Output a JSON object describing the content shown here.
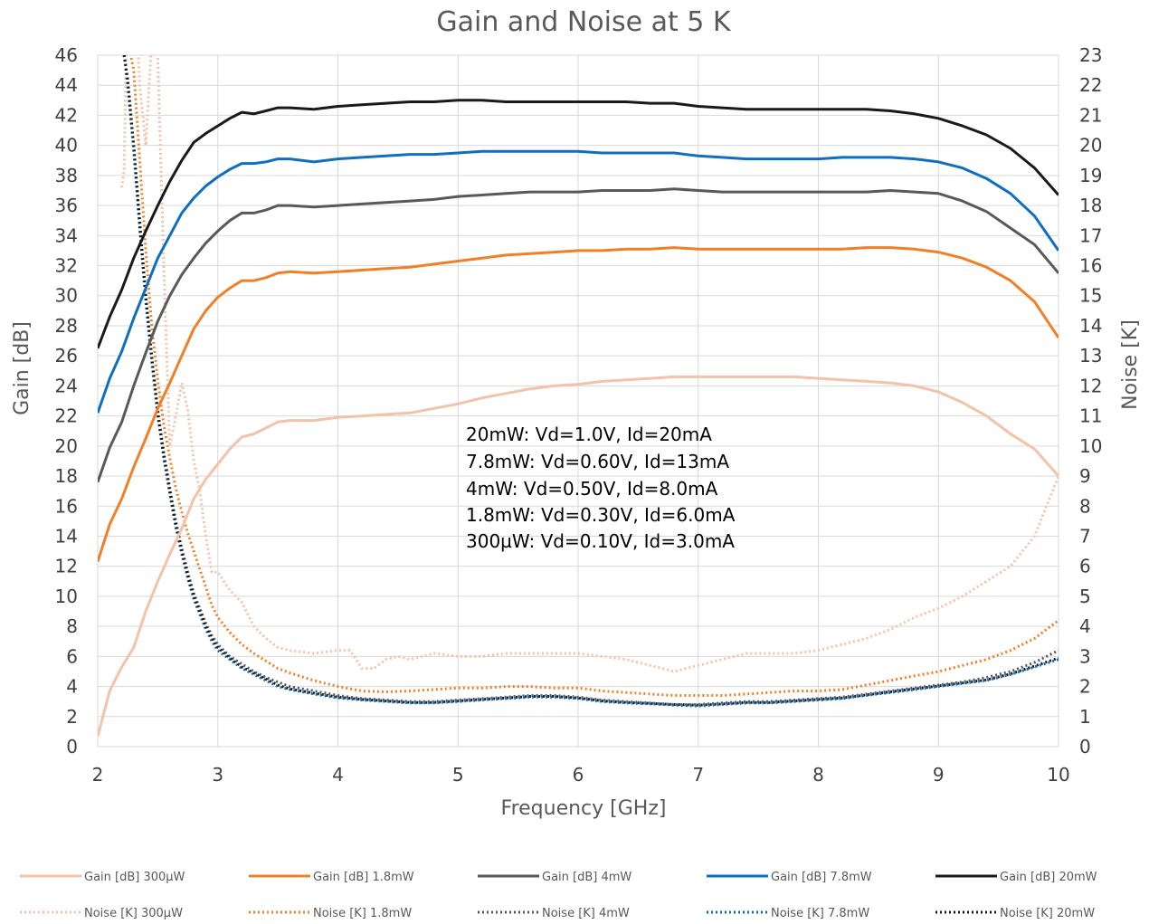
{
  "chart_data": {
    "type": "line",
    "title": "Gain and Noise at 5 K",
    "xlabel": "Frequency [GHz]",
    "ylabel": "Gain [dB]",
    "y2label": "Noise [K]",
    "xlim": [
      2,
      10
    ],
    "ylim": [
      0,
      46
    ],
    "y2lim": [
      0,
      23
    ],
    "x_ticks": [
      "2",
      "3",
      "4",
      "5",
      "6",
      "7",
      "8",
      "9",
      "10"
    ],
    "y_ticks": [
      "0",
      "2",
      "4",
      "6",
      "8",
      "10",
      "12",
      "14",
      "16",
      "18",
      "20",
      "22",
      "24",
      "26",
      "28",
      "30",
      "32",
      "34",
      "36",
      "38",
      "40",
      "42",
      "44",
      "46"
    ],
    "y2_ticks": [
      "0",
      "1",
      "2",
      "3",
      "4",
      "5",
      "6",
      "7",
      "8",
      "9",
      "10",
      "11",
      "12",
      "13",
      "14",
      "15",
      "16",
      "17",
      "18",
      "19",
      "20",
      "21",
      "22",
      "23"
    ],
    "grid": true,
    "legend_position": "bottom",
    "annotations": [
      "20mW: Vd=1.0V, Id=20mA",
      "7.8mW: Vd=0.60V, Id=13mA",
      "4mW: Vd=0.50V, Id=8.0mA",
      "1.8mW: Vd=0.30V, Id=6.0mA",
      "300µW: Vd=0.10V, Id=3.0mA"
    ],
    "series": [
      {
        "name": "Gain [dB] 300µW",
        "axis": "left",
        "style": "solid",
        "color": "#f4c2a8",
        "x": [
          2,
          2.1,
          2.2,
          2.3,
          2.4,
          2.5,
          2.6,
          2.7,
          2.8,
          2.9,
          3,
          3.1,
          3.2,
          3.3,
          3.4,
          3.5,
          3.6,
          3.8,
          4,
          4.2,
          4.4,
          4.6,
          4.8,
          5,
          5.2,
          5.4,
          5.6,
          5.8,
          6,
          6.2,
          6.4,
          6.6,
          6.8,
          7,
          7.2,
          7.4,
          7.6,
          7.8,
          8,
          8.2,
          8.4,
          8.6,
          8.8,
          9,
          9.2,
          9.4,
          9.6,
          9.8,
          10
        ],
        "y": [
          0.7,
          3.7,
          5.3,
          6.6,
          9,
          11,
          12.8,
          14.5,
          16.5,
          17.8,
          18.8,
          19.8,
          20.6,
          20.8,
          21.2,
          21.6,
          21.7,
          21.7,
          21.9,
          22,
          22.1,
          22.2,
          22.5,
          22.8,
          23.2,
          23.5,
          23.8,
          24,
          24.1,
          24.3,
          24.4,
          24.5,
          24.6,
          24.6,
          24.6,
          24.6,
          24.6,
          24.6,
          24.5,
          24.4,
          24.3,
          24.2,
          24,
          23.6,
          22.9,
          22,
          20.8,
          19.8,
          18
        ]
      },
      {
        "name": "Gain [dB] 1.8mW",
        "axis": "left",
        "style": "solid",
        "color": "#f07f25",
        "x": [
          2,
          2.1,
          2.2,
          2.3,
          2.4,
          2.5,
          2.6,
          2.7,
          2.8,
          2.9,
          3,
          3.1,
          3.2,
          3.3,
          3.4,
          3.5,
          3.6,
          3.8,
          4,
          4.2,
          4.4,
          4.6,
          4.8,
          5,
          5.2,
          5.4,
          5.6,
          5.8,
          6,
          6.2,
          6.4,
          6.6,
          6.8,
          7,
          7.2,
          7.4,
          7.6,
          7.8,
          8,
          8.2,
          8.4,
          8.6,
          8.8,
          9,
          9.2,
          9.4,
          9.6,
          9.8,
          10
        ],
        "y": [
          12.3,
          14.8,
          16.5,
          18.6,
          20.5,
          22.5,
          24.2,
          26,
          27.8,
          29,
          29.9,
          30.5,
          31,
          31,
          31.2,
          31.5,
          31.6,
          31.5,
          31.6,
          31.7,
          31.8,
          31.9,
          32.1,
          32.3,
          32.5,
          32.7,
          32.8,
          32.9,
          33,
          33,
          33.1,
          33.1,
          33.2,
          33.1,
          33.1,
          33.1,
          33.1,
          33.1,
          33.1,
          33.1,
          33.2,
          33.2,
          33.1,
          32.9,
          32.5,
          31.9,
          31,
          29.6,
          27.2
        ]
      },
      {
        "name": "Gain [dB] 4mW",
        "axis": "left",
        "style": "solid",
        "color": "#595959",
        "x": [
          2,
          2.1,
          2.2,
          2.3,
          2.4,
          2.5,
          2.6,
          2.7,
          2.8,
          2.9,
          3,
          3.1,
          3.2,
          3.3,
          3.4,
          3.5,
          3.6,
          3.8,
          4,
          4.2,
          4.4,
          4.6,
          4.8,
          5,
          5.2,
          5.4,
          5.6,
          5.8,
          6,
          6.2,
          6.4,
          6.6,
          6.8,
          7,
          7.2,
          7.4,
          7.6,
          7.8,
          8,
          8.2,
          8.4,
          8.6,
          8.8,
          9,
          9.2,
          9.4,
          9.6,
          9.8,
          10
        ],
        "y": [
          17.6,
          19.9,
          21.6,
          24,
          26.2,
          28.3,
          30,
          31.4,
          32.5,
          33.5,
          34.3,
          35,
          35.5,
          35.5,
          35.7,
          36,
          36,
          35.9,
          36,
          36.1,
          36.2,
          36.3,
          36.4,
          36.6,
          36.7,
          36.8,
          36.9,
          36.9,
          36.9,
          37,
          37,
          37,
          37.1,
          37,
          36.9,
          36.9,
          36.9,
          36.9,
          36.9,
          36.9,
          36.9,
          37,
          36.9,
          36.8,
          36.3,
          35.6,
          34.5,
          33.4,
          31.5
        ]
      },
      {
        "name": "Gain [dB] 7.8mW",
        "axis": "left",
        "style": "solid",
        "color": "#0f6fbf",
        "x": [
          2,
          2.1,
          2.2,
          2.3,
          2.4,
          2.5,
          2.6,
          2.7,
          2.8,
          2.9,
          3,
          3.1,
          3.2,
          3.3,
          3.4,
          3.5,
          3.6,
          3.8,
          4,
          4.2,
          4.4,
          4.6,
          4.8,
          5,
          5.2,
          5.4,
          5.6,
          5.8,
          6,
          6.2,
          6.4,
          6.6,
          6.8,
          7,
          7.2,
          7.4,
          7.6,
          7.8,
          8,
          8.2,
          8.4,
          8.6,
          8.8,
          9,
          9.2,
          9.4,
          9.6,
          9.8,
          10
        ],
        "y": [
          22.2,
          24.5,
          26.3,
          28.5,
          30.5,
          32.5,
          34,
          35.5,
          36.5,
          37.3,
          37.9,
          38.4,
          38.8,
          38.8,
          38.9,
          39.1,
          39.1,
          38.9,
          39.1,
          39.2,
          39.3,
          39.4,
          39.4,
          39.5,
          39.6,
          39.6,
          39.6,
          39.6,
          39.6,
          39.5,
          39.5,
          39.5,
          39.5,
          39.3,
          39.2,
          39.1,
          39.1,
          39.1,
          39.1,
          39.2,
          39.2,
          39.2,
          39.1,
          38.9,
          38.5,
          37.8,
          36.8,
          35.3,
          33
        ]
      },
      {
        "name": "Gain [dB] 20mW",
        "axis": "left",
        "style": "solid",
        "color": "#1a1a1a",
        "x": [
          2,
          2.1,
          2.2,
          2.3,
          2.4,
          2.5,
          2.6,
          2.7,
          2.8,
          2.9,
          3,
          3.1,
          3.2,
          3.3,
          3.4,
          3.5,
          3.6,
          3.8,
          4,
          4.2,
          4.4,
          4.6,
          4.8,
          5,
          5.2,
          5.4,
          5.6,
          5.8,
          6,
          6.2,
          6.4,
          6.6,
          6.8,
          7,
          7.2,
          7.4,
          7.6,
          7.8,
          8,
          8.2,
          8.4,
          8.6,
          8.8,
          9,
          9.2,
          9.4,
          9.6,
          9.8,
          10
        ],
        "y": [
          26.5,
          28.6,
          30.4,
          32.5,
          34.3,
          36,
          37.6,
          39,
          40.2,
          40.8,
          41.3,
          41.8,
          42.2,
          42.1,
          42.3,
          42.5,
          42.5,
          42.4,
          42.6,
          42.7,
          42.8,
          42.9,
          42.9,
          43,
          43,
          42.9,
          42.9,
          42.9,
          42.9,
          42.9,
          42.9,
          42.8,
          42.8,
          42.6,
          42.5,
          42.4,
          42.4,
          42.4,
          42.4,
          42.4,
          42.4,
          42.3,
          42.1,
          41.8,
          41.3,
          40.7,
          39.8,
          38.5,
          36.7
        ]
      },
      {
        "name": "Noise [K] 300µW",
        "axis": "right",
        "style": "dotted",
        "color": "#f4c2a8",
        "x": [
          2.2,
          2.22,
          2.25,
          2.3,
          2.35,
          2.4,
          2.45,
          2.5,
          2.55,
          2.6,
          2.65,
          2.7,
          2.75,
          2.8,
          2.85,
          2.9,
          2.95,
          3,
          3.1,
          3.2,
          3.3,
          3.4,
          3.5,
          3.6,
          3.8,
          4,
          4.1,
          4.2,
          4.3,
          4.4,
          4.5,
          4.6,
          4.8,
          5,
          5.2,
          5.4,
          5.6,
          5.8,
          6,
          6.2,
          6.4,
          6.6,
          6.8,
          7,
          7.2,
          7.4,
          7.6,
          7.8,
          8,
          8.2,
          8.4,
          8.6,
          8.8,
          9,
          9.2,
          9.4,
          9.6,
          9.8,
          10
        ],
        "y": [
          18.6,
          19.2,
          26,
          26,
          22,
          20,
          23.5,
          23,
          16,
          10,
          11,
          12.1,
          11.2,
          9.5,
          8.5,
          7,
          5.8,
          5.8,
          5.2,
          4.8,
          4,
          3.6,
          3.3,
          3.2,
          3.1,
          3.2,
          3.2,
          2.6,
          2.6,
          2.9,
          3,
          2.9,
          3.1,
          3,
          3,
          3.1,
          3.1,
          3.1,
          3.1,
          3,
          2.9,
          2.7,
          2.5,
          2.7,
          2.9,
          3.1,
          3.1,
          3.1,
          3.2,
          3.4,
          3.6,
          3.9,
          4.3,
          4.6,
          5,
          5.5,
          6,
          7,
          9
        ]
      },
      {
        "name": "Noise [K] 1.8mW",
        "axis": "right",
        "style": "dotted",
        "color": "#f07f25",
        "x": [
          2.25,
          2.3,
          2.35,
          2.4,
          2.45,
          2.5,
          2.55,
          2.6,
          2.65,
          2.7,
          2.75,
          2.8,
          2.85,
          2.9,
          2.95,
          3,
          3.1,
          3.2,
          3.3,
          3.4,
          3.5,
          3.6,
          3.8,
          4,
          4.2,
          4.4,
          4.6,
          4.8,
          5,
          5.2,
          5.4,
          5.6,
          5.8,
          6,
          6.2,
          6.4,
          6.6,
          6.8,
          7,
          7.2,
          7.4,
          7.6,
          7.8,
          8,
          8.2,
          8.4,
          8.6,
          8.8,
          9,
          9.2,
          9.4,
          9.6,
          9.8,
          10
        ],
        "y": [
          23.5,
          22.5,
          19.5,
          16.5,
          14,
          12.2,
          10.7,
          9.6,
          8.6,
          7.8,
          7.1,
          6.5,
          5.9,
          5.3,
          4.7,
          4.3,
          3.8,
          3.4,
          3.1,
          2.85,
          2.6,
          2.45,
          2.2,
          2.0,
          1.85,
          1.82,
          1.85,
          1.9,
          1.95,
          1.95,
          2.0,
          2.0,
          1.95,
          1.95,
          1.85,
          1.8,
          1.75,
          1.7,
          1.7,
          1.7,
          1.75,
          1.8,
          1.85,
          1.85,
          1.9,
          2.05,
          2.2,
          2.35,
          2.5,
          2.7,
          2.9,
          3.2,
          3.6,
          4.2
        ]
      },
      {
        "name": "Noise [K] 4mW",
        "axis": "right",
        "style": "dotted",
        "color": "#595959",
        "x": [
          2.22,
          2.25,
          2.3,
          2.35,
          2.4,
          2.45,
          2.5,
          2.55,
          2.6,
          2.65,
          2.7,
          2.75,
          2.8,
          2.85,
          2.9,
          2.95,
          3,
          3.1,
          3.2,
          3.3,
          3.4,
          3.5,
          3.6,
          3.8,
          4,
          4.2,
          4.4,
          4.6,
          4.8,
          5,
          5.2,
          5.4,
          5.6,
          5.8,
          6,
          6.2,
          6.4,
          6.6,
          6.8,
          7,
          7.2,
          7.4,
          7.6,
          7.8,
          8,
          8.2,
          8.4,
          8.6,
          8.8,
          9,
          9.2,
          9.4,
          9.6,
          9.8,
          10
        ],
        "y": [
          23,
          22,
          20,
          17.5,
          15,
          13,
          11.2,
          9.8,
          8.6,
          7.5,
          6.6,
          5.8,
          5.1,
          4.6,
          4.1,
          3.7,
          3.4,
          3.0,
          2.75,
          2.5,
          2.3,
          2.15,
          2.0,
          1.85,
          1.7,
          1.6,
          1.55,
          1.5,
          1.5,
          1.55,
          1.6,
          1.65,
          1.7,
          1.7,
          1.65,
          1.55,
          1.5,
          1.45,
          1.4,
          1.4,
          1.45,
          1.5,
          1.5,
          1.55,
          1.6,
          1.65,
          1.75,
          1.85,
          1.95,
          2.05,
          2.15,
          2.3,
          2.5,
          2.8,
          3.2
        ]
      },
      {
        "name": "Noise [K] 7.8mW",
        "axis": "right",
        "style": "dotted",
        "color": "#0f6fbf",
        "x": [
          2.22,
          2.25,
          2.3,
          2.35,
          2.4,
          2.45,
          2.5,
          2.55,
          2.6,
          2.65,
          2.7,
          2.75,
          2.8,
          2.85,
          2.9,
          2.95,
          3,
          3.1,
          3.2,
          3.3,
          3.4,
          3.5,
          3.6,
          3.8,
          4,
          4.2,
          4.4,
          4.6,
          4.8,
          5,
          5.2,
          5.4,
          5.6,
          5.8,
          6,
          6.2,
          6.4,
          6.6,
          6.8,
          7,
          7.2,
          7.4,
          7.6,
          7.8,
          8,
          8.2,
          8.4,
          8.6,
          8.8,
          9,
          9.2,
          9.4,
          9.6,
          9.8,
          10
        ],
        "y": [
          23,
          22,
          19.8,
          17.2,
          14.8,
          12.8,
          11,
          9.6,
          8.4,
          7.3,
          6.4,
          5.6,
          4.9,
          4.4,
          3.9,
          3.5,
          3.2,
          2.9,
          2.6,
          2.4,
          2.2,
          2.0,
          1.9,
          1.75,
          1.62,
          1.55,
          1.5,
          1.45,
          1.45,
          1.5,
          1.55,
          1.6,
          1.65,
          1.65,
          1.6,
          1.5,
          1.45,
          1.42,
          1.38,
          1.35,
          1.4,
          1.45,
          1.45,
          1.5,
          1.55,
          1.6,
          1.7,
          1.8,
          1.9,
          2.0,
          2.1,
          2.2,
          2.4,
          2.65,
          2.9
        ]
      },
      {
        "name": "Noise [K] 20mW",
        "axis": "right",
        "style": "dotted",
        "color": "#1a1a1a",
        "x": [
          2.22,
          2.25,
          2.3,
          2.35,
          2.4,
          2.45,
          2.5,
          2.55,
          2.6,
          2.65,
          2.7,
          2.75,
          2.8,
          2.85,
          2.9,
          2.95,
          3,
          3.1,
          3.2,
          3.3,
          3.4,
          3.5,
          3.6,
          3.8,
          4,
          4.2,
          4.4,
          4.6,
          4.8,
          5,
          5.2,
          5.4,
          5.6,
          5.8,
          6,
          6.2,
          6.4,
          6.6,
          6.8,
          7,
          7.2,
          7.4,
          7.6,
          7.8,
          8,
          8.2,
          8.4,
          8.6,
          8.8,
          9,
          9.2,
          9.4,
          9.6,
          9.8,
          10
        ],
        "y": [
          23,
          22.2,
          20,
          17.4,
          15,
          13,
          11.1,
          9.7,
          8.5,
          7.4,
          6.5,
          5.7,
          5.0,
          4.5,
          4.0,
          3.6,
          3.3,
          2.95,
          2.65,
          2.45,
          2.25,
          2.05,
          1.92,
          1.78,
          1.65,
          1.57,
          1.52,
          1.47,
          1.47,
          1.52,
          1.57,
          1.62,
          1.67,
          1.67,
          1.62,
          1.52,
          1.47,
          1.44,
          1.4,
          1.38,
          1.42,
          1.47,
          1.47,
          1.52,
          1.57,
          1.62,
          1.72,
          1.82,
          1.92,
          2.02,
          2.12,
          2.22,
          2.42,
          2.68,
          2.95
        ]
      }
    ]
  }
}
